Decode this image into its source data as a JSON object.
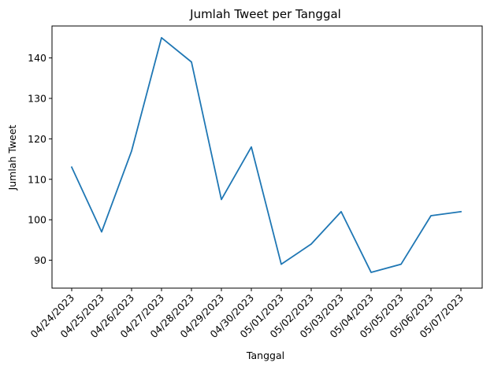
{
  "chart_data": {
    "type": "line",
    "title": "Jumlah Tweet per Tanggal",
    "xlabel": "Tanggal",
    "ylabel": "Jumlah Tweet",
    "categories": [
      "04/24/2023",
      "04/25/2023",
      "04/26/2023",
      "04/27/2023",
      "04/28/2023",
      "04/29/2023",
      "04/30/2023",
      "05/01/2023",
      "05/02/2023",
      "05/03/2023",
      "05/04/2023",
      "05/05/2023",
      "05/06/2023",
      "05/07/2023"
    ],
    "series": [
      {
        "values": [
          113,
          97,
          117,
          145,
          139,
          105,
          118,
          89,
          94,
          102,
          87,
          89,
          101,
          102
        ],
        "color": "#1f77b4"
      }
    ],
    "ylim": [
      83.1,
      147.9
    ],
    "yticks": [
      90,
      100,
      110,
      120,
      130,
      140
    ],
    "grid": false,
    "legend": "none"
  }
}
